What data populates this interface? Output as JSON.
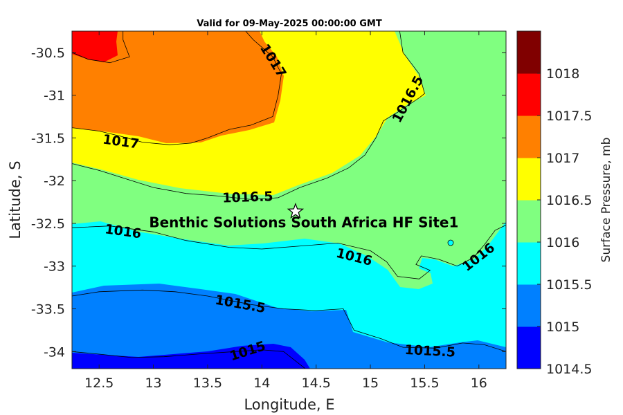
{
  "chart_data": {
    "type": "contourf",
    "title": "Valid for 09-May-2025 00:00:00 GMT",
    "xlabel": "Longitude, E",
    "ylabel": "Latitude, S",
    "xlim": [
      12.25,
      16.25
    ],
    "ylim": [
      -34.2,
      -30.25
    ],
    "x_ticks": [
      "12.5",
      "13",
      "13.5",
      "14",
      "14.5",
      "15",
      "15.5",
      "16"
    ],
    "y_ticks": [
      "-30.5",
      "-31",
      "-31.5",
      "-32",
      "-32.5",
      "-33",
      "-33.5",
      "-34"
    ],
    "colorbar": {
      "label": "Surface Pressure, mb",
      "levels": [
        1014.5,
        1015,
        1015.5,
        1016,
        1016.5,
        1017,
        1017.5,
        1018
      ],
      "tick_labels": [
        "1014.5",
        "1015",
        "1015.5",
        "1016",
        "1016.5",
        "1017",
        "1017.5",
        "1018"
      ],
      "colors": [
        "#0000ff",
        "#0080ff",
        "#00ffff",
        "#80ff80",
        "#ffff00",
        "#ff8000",
        "#ff0000",
        "#800000"
      ]
    },
    "contour_labels": [
      {
        "text": "1017",
        "lon": 14.1,
        "lat": -30.6,
        "angle": 58
      },
      {
        "text": "1017",
        "lon": 12.7,
        "lat": -31.55,
        "angle": 8
      },
      {
        "text": "1016.5",
        "lon": 15.35,
        "lat": -31.05,
        "angle": -62
      },
      {
        "text": "1016.5",
        "lon": 13.87,
        "lat": -32.2,
        "angle": -2
      },
      {
        "text": "1016",
        "lon": 12.72,
        "lat": -32.6,
        "angle": 8
      },
      {
        "text": "1016",
        "lon": 14.85,
        "lat": -32.9,
        "angle": 14
      },
      {
        "text": "1016",
        "lon": 16.0,
        "lat": -32.9,
        "angle": -38
      },
      {
        "text": "1015.5",
        "lon": 13.8,
        "lat": -33.45,
        "angle": 10
      },
      {
        "text": "1015.5",
        "lon": 15.55,
        "lat": -34.0,
        "angle": 3
      },
      {
        "text": "1015",
        "lon": 13.87,
        "lat": -34.0,
        "angle": -18
      }
    ],
    "annotation": {
      "text": "Benthic Solutions South Africa HF Site1",
      "lon": 14.31,
      "lat": -32.36,
      "marker": "star"
    },
    "contour_lines": [
      {
        "level": 1017.5,
        "points": [
          [
            12.25,
            -30.5
          ],
          [
            12.4,
            -30.58
          ],
          [
            12.6,
            -30.62
          ],
          [
            12.78,
            -30.55
          ],
          [
            12.72,
            -30.35
          ],
          [
            12.72,
            -30.25
          ]
        ]
      },
      {
        "level": 1017,
        "points": [
          [
            12.25,
            -31.38
          ],
          [
            12.5,
            -31.42
          ],
          [
            12.7,
            -31.48
          ],
          [
            12.9,
            -31.55
          ],
          [
            13.15,
            -31.58
          ],
          [
            13.35,
            -31.56
          ],
          [
            13.5,
            -31.5
          ],
          [
            13.7,
            -31.4
          ],
          [
            13.9,
            -31.35
          ],
          [
            14.1,
            -31.25
          ],
          [
            14.15,
            -31.0
          ],
          [
            14.18,
            -30.75
          ],
          [
            14.1,
            -30.55
          ],
          [
            13.92,
            -30.35
          ],
          [
            13.85,
            -30.25
          ]
        ]
      },
      {
        "level": 1016.5,
        "points": [
          [
            12.25,
            -31.8
          ],
          [
            12.5,
            -31.88
          ],
          [
            12.75,
            -31.98
          ],
          [
            13.0,
            -32.08
          ],
          [
            13.3,
            -32.15
          ],
          [
            13.6,
            -32.18
          ],
          [
            13.9,
            -32.22
          ],
          [
            14.15,
            -32.2
          ],
          [
            14.35,
            -32.08
          ],
          [
            14.6,
            -31.97
          ],
          [
            14.8,
            -31.85
          ],
          [
            14.95,
            -31.7
          ],
          [
            15.05,
            -31.5
          ],
          [
            15.12,
            -31.3
          ],
          [
            15.25,
            -31.2
          ],
          [
            15.45,
            -31.03
          ],
          [
            15.5,
            -30.98
          ],
          [
            15.45,
            -30.75
          ],
          [
            15.3,
            -30.5
          ],
          [
            15.27,
            -30.25
          ]
        ]
      },
      {
        "level": 1016,
        "points": [
          [
            12.25,
            -32.55
          ],
          [
            12.6,
            -32.53
          ],
          [
            13.0,
            -32.6
          ],
          [
            13.3,
            -32.7
          ],
          [
            13.7,
            -32.78
          ],
          [
            14.0,
            -32.8
          ],
          [
            14.4,
            -32.76
          ],
          [
            14.7,
            -32.73
          ],
          [
            15.0,
            -32.82
          ],
          [
            15.15,
            -32.95
          ],
          [
            15.25,
            -33.12
          ],
          [
            15.45,
            -33.15
          ],
          [
            15.55,
            -33.05
          ],
          [
            15.42,
            -32.98
          ],
          [
            15.47,
            -32.88
          ],
          [
            15.63,
            -32.92
          ],
          [
            15.8,
            -33.0
          ],
          [
            15.95,
            -32.9
          ],
          [
            16.05,
            -32.75
          ],
          [
            16.15,
            -32.58
          ],
          [
            16.25,
            -32.52
          ]
        ]
      },
      {
        "level": 1015.5,
        "points": [
          [
            12.25,
            -33.35
          ],
          [
            12.5,
            -33.3
          ],
          [
            12.9,
            -33.28
          ],
          [
            13.2,
            -33.3
          ],
          [
            13.5,
            -33.35
          ],
          [
            13.9,
            -33.45
          ],
          [
            14.2,
            -33.5
          ],
          [
            14.5,
            -33.52
          ],
          [
            14.75,
            -33.5
          ],
          [
            14.85,
            -33.75
          ],
          [
            15.1,
            -33.85
          ],
          [
            15.3,
            -33.95
          ],
          [
            15.6,
            -33.96
          ],
          [
            15.85,
            -33.9
          ],
          [
            16.05,
            -33.92
          ],
          [
            16.25,
            -34.0
          ]
        ]
      },
      {
        "level": 1015,
        "points": [
          [
            12.25,
            -34.0
          ],
          [
            12.5,
            -34.03
          ],
          [
            12.8,
            -34.07
          ],
          [
            13.1,
            -34.06
          ],
          [
            13.4,
            -34.03
          ],
          [
            13.75,
            -34.0
          ],
          [
            14.0,
            -33.98
          ],
          [
            14.2,
            -34.0
          ],
          [
            14.3,
            -34.1
          ],
          [
            14.4,
            -34.2
          ]
        ]
      }
    ]
  }
}
